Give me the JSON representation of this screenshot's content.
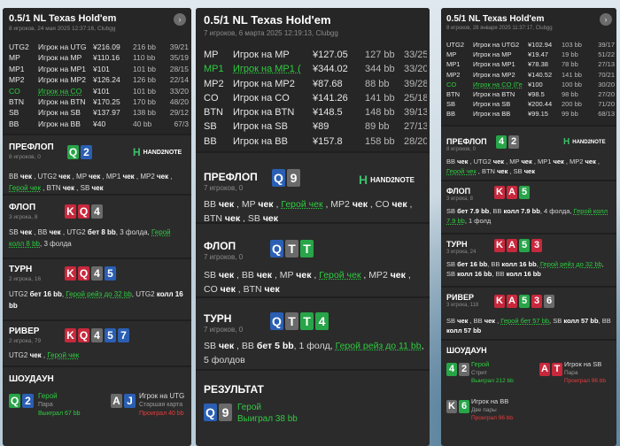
{
  "p1": {
    "title": "0.5/1 NL Texas Hold'em",
    "subtitle": "8 игроков, 24 мая 2025 12:37:16, Clubgg",
    "players": [
      {
        "pos": "UTG2",
        "name": "Игрок на UTG",
        "stack": "¥216.09",
        "bb": "216 bb",
        "pct": "39/21",
        "hero": false
      },
      {
        "pos": "MP",
        "name": "Игрок на MP",
        "stack": "¥110.16",
        "bb": "110 bb",
        "pct": "35/19",
        "hero": false
      },
      {
        "pos": "MP1",
        "name": "Игрок на MP1",
        "stack": "¥101",
        "bb": "101 bb",
        "pct": "28/15",
        "hero": false
      },
      {
        "pos": "MP2",
        "name": "Игрок на MP2",
        "stack": "¥126.24",
        "bb": "126 bb",
        "pct": "22/14",
        "hero": false
      },
      {
        "pos": "CO",
        "name": "Игрок на CO",
        "stack": "¥101",
        "bb": "101 bb",
        "pct": "33/20",
        "hero": true
      },
      {
        "pos": "BTN",
        "name": "Игрок на BTN",
        "stack": "¥170.25",
        "bb": "170 bb",
        "pct": "48/20",
        "hero": false
      },
      {
        "pos": "SB",
        "name": "Игрок на SB",
        "stack": "¥137.97",
        "bb": "138 bb",
        "pct": "29/12",
        "hero": false
      },
      {
        "pos": "BB",
        "name": "Игрок на BB",
        "stack": "¥40",
        "bb": "40 bb",
        "pct": "67/3",
        "hero": false
      }
    ],
    "preflop": {
      "name": "ПРЕФЛОП",
      "info": "8 игроков, 0"
    },
    "flop": {
      "name": "ФЛОП",
      "info": "3 игрока, 8"
    },
    "turn": {
      "name": "ТУРН",
      "info": "2 игрока, 16"
    },
    "river": {
      "name": "РИВЕР",
      "info": "2 игрока, 79"
    },
    "showdown": {
      "name": "ШОУДАУН",
      "hero_name": "Герой",
      "hero_hand": "Пара",
      "hero_result": "Выиграл 67 bb",
      "opp_name": "Игрок на UTG",
      "opp_hand": "Старшая карта",
      "opp_result": "Проиграл 40 bb"
    }
  },
  "p2": {
    "title": "0.5/1 NL Texas Hold'em",
    "subtitle": "7 игроков, 6 марта 2025 12:19:13, Clubgg",
    "players": [
      {
        "pos": "MP",
        "name": "Игрок на MP",
        "stack": "¥127.05",
        "bb": "127 bb",
        "pct": "33/25",
        "hero": false
      },
      {
        "pos": "MP1",
        "name": "Игрок на MP1 (",
        "stack": "¥344.02",
        "bb": "344 bb",
        "pct": "33/20",
        "hero": true
      },
      {
        "pos": "MP2",
        "name": "Игрок на MP2",
        "stack": "¥87.68",
        "bb": "88 bb",
        "pct": "39/28",
        "hero": false
      },
      {
        "pos": "CO",
        "name": "Игрок на CO",
        "stack": "¥141.26",
        "bb": "141 bb",
        "pct": "25/18",
        "hero": false
      },
      {
        "pos": "BTN",
        "name": "Игрок на BTN",
        "stack": "¥148.5",
        "bb": "148 bb",
        "pct": "39/13",
        "hero": false
      },
      {
        "pos": "SB",
        "name": "Игрок на SB",
        "stack": "¥89",
        "bb": "89 bb",
        "pct": "27/13",
        "hero": false
      },
      {
        "pos": "BB",
        "name": "Игрок на BB",
        "stack": "¥157.8",
        "bb": "158 bb",
        "pct": "28/20",
        "hero": false
      }
    ],
    "preflop": {
      "name": "ПРЕФЛОП",
      "info": "7 игроков, 0"
    },
    "flop": {
      "name": "ФЛОП",
      "info": "7 игроков, 0"
    },
    "turn": {
      "name": "ТУРН",
      "info": "7 игроков, 0"
    },
    "result": {
      "name": "РЕЗУЛЬТАТ",
      "hero_name": "Герой",
      "hero_result": "Выиграл 38 bb"
    }
  },
  "p3": {
    "title": "0.5/1 NL Texas Hold'em",
    "subtitle": "8 игроков, 28 января 2025 11:37:17, Clubgg",
    "players": [
      {
        "pos": "UTG2",
        "name": "Игрок на UTG2",
        "stack": "¥102.94",
        "bb": "103 bb",
        "pct": "39/17",
        "hero": false
      },
      {
        "pos": "MP",
        "name": "Игрок на MP",
        "stack": "¥19.47",
        "bb": "19 bb",
        "pct": "51/22",
        "hero": false
      },
      {
        "pos": "MP1",
        "name": "Игрок на MP1",
        "stack": "¥78.38",
        "bb": "78 bb",
        "pct": "27/13",
        "hero": false
      },
      {
        "pos": "MP2",
        "name": "Игрок на MP2",
        "stack": "¥140.52",
        "bb": "141 bb",
        "pct": "70/21",
        "hero": false
      },
      {
        "pos": "CO",
        "name": "Игрок на CO (Ге",
        "stack": "¥100",
        "bb": "100 bb",
        "pct": "30/20",
        "hero": true
      },
      {
        "pos": "BTN",
        "name": "Игрок на BTN",
        "stack": "¥98.5",
        "bb": "98 bb",
        "pct": "27/20",
        "hero": false
      },
      {
        "pos": "SB",
        "name": "Игрок на SB",
        "stack": "¥200.44",
        "bb": "200 bb",
        "pct": "71/20",
        "hero": false
      },
      {
        "pos": "BB",
        "name": "Игрок на BB",
        "stack": "¥99.15",
        "bb": "99 bb",
        "pct": "68/13",
        "hero": false
      }
    ],
    "preflop": {
      "name": "ПРЕФЛОП",
      "info": "8 игроков, 0"
    },
    "flop": {
      "name": "ФЛОП",
      "info": "3 игрока, 8"
    },
    "turn": {
      "name": "ТУРН",
      "info": "3 игрока, 24"
    },
    "river": {
      "name": "РИВЕР",
      "info": "3 игрока, 118"
    },
    "showdown": {
      "name": "ШОУДАУН",
      "hero_name": "Герой",
      "hero_hand": "Стрит",
      "hero_result": "Выиграл 212 bb",
      "opp1_name": "Игрок на SB",
      "opp1_hand": "Пара",
      "opp1_result": "Проиграл 96 bb",
      "opp2_name": "Игрок на BB",
      "opp2_hand": "Две пары",
      "opp2_result": "Проиграл 96 bb"
    }
  },
  "logo_text": "HAND2NOTE",
  "colors": {
    "red": "#c8283c",
    "blue": "#2a5fb4",
    "green": "#27a548",
    "gray": "#6a6a6a",
    "hero": "#2ecc40",
    "win": "#2ecc40",
    "lose": "#e83c3c"
  }
}
